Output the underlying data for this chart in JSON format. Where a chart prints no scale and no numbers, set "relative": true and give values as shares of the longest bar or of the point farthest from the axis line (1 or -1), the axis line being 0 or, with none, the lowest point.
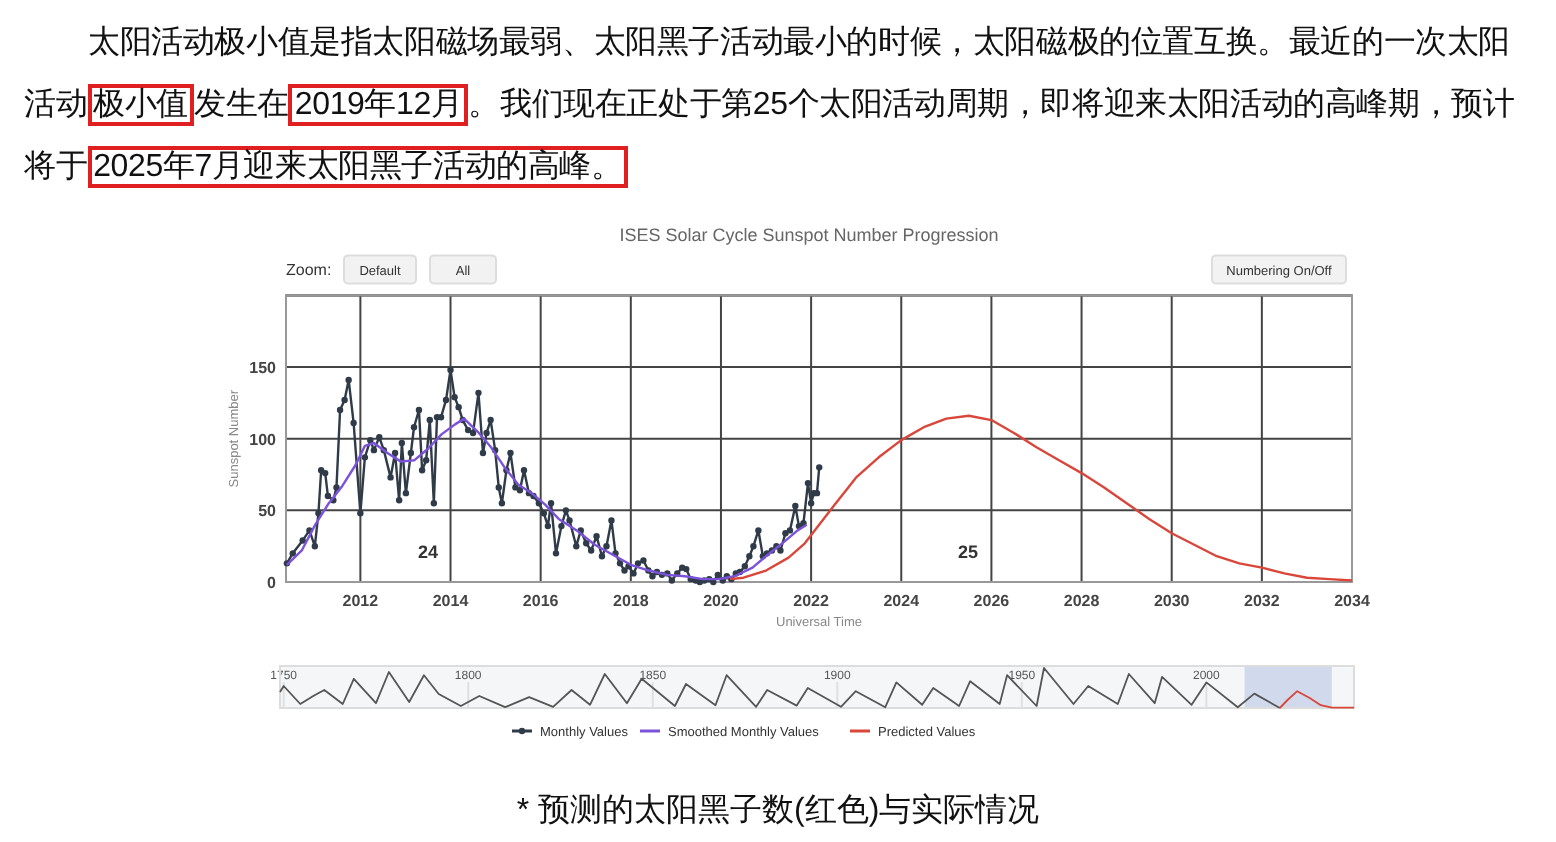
{
  "chart_data": [
    {
      "type": "line",
      "title": "ISES Solar Cycle Sunspot Number Progression",
      "xlabel": "Universal Time",
      "ylabel": "Sunspot Number",
      "annotations": [
        "太阳活动极小值是指太阳磁场最弱、太阳黑子活动最小的时候，太阳磁极的位置互换。最近的一次太阳活动",
        "极小值",
        "发生在",
        "2019年12月",
        "。我们现在正处于第25个太阳活动周期，即将迎来太阳活动的高峰期，预计将于",
        "2025年7月迎来太阳黑子活动的高峰。",
        "* 预测的太阳黑子数(红色)与实际情况",
        "Zoom:",
        "Default",
        "All",
        "Numbering On/Off",
        "24",
        "25"
      ],
      "series": [
        {
          "name": "Monthly Values",
          "color": "#2f3b48",
          "marker": "circle",
          "x": [
            2010.37,
            2010.5,
            2010.72,
            2010.87,
            2010.99,
            2011.07,
            2011.13,
            2011.22,
            2011.28,
            2011.4,
            2011.47,
            2011.55,
            2011.65,
            2011.74,
            2011.85,
            2012.0,
            2012.1,
            2012.22,
            2012.3,
            2012.42,
            2012.52,
            2012.67,
            2012.77,
            2012.86,
            2012.92,
            2013.01,
            2013.12,
            2013.19,
            2013.3,
            2013.37,
            2013.46,
            2013.54,
            2013.63,
            2013.7,
            2013.79,
            2013.9,
            2014.0,
            2014.09,
            2014.18,
            2014.27,
            2014.39,
            2014.5,
            2014.62,
            2014.72,
            2014.8,
            2014.89,
            2014.99,
            2015.07,
            2015.14,
            2015.24,
            2015.33,
            2015.44,
            2015.54,
            2015.63,
            2015.74,
            2015.84,
            2015.96,
            2016.07,
            2016.16,
            2016.23,
            2016.34,
            2016.46,
            2016.56,
            2016.64,
            2016.79,
            2016.89,
            2017.01,
            2017.12,
            2017.24,
            2017.36,
            2017.46,
            2017.57,
            2017.66,
            2017.76,
            2017.86,
            2017.95,
            2018.06,
            2018.16,
            2018.28,
            2018.39,
            2018.48,
            2018.58,
            2018.69,
            2018.81,
            2018.91,
            2019.03,
            2019.14,
            2019.23,
            2019.33,
            2019.44,
            2019.53,
            2019.63,
            2019.74,
            2019.83,
            2019.93,
            2020.04,
            2020.13,
            2020.23,
            2020.33,
            2020.42,
            2020.53,
            2020.63,
            2020.72,
            2020.83,
            2020.93,
            2021.02,
            2021.13,
            2021.23,
            2021.32,
            2021.43,
            2021.53,
            2021.65,
            2021.73,
            2021.83,
            2021.93,
            2022.0,
            2022.06,
            2022.13,
            2022.18
          ],
          "values": [
            13,
            20,
            29,
            36,
            25,
            48,
            78,
            76,
            60,
            57,
            66,
            120,
            127,
            141,
            111,
            48,
            87,
            99,
            92,
            101,
            92,
            73,
            90,
            57,
            97,
            62,
            90,
            108,
            120,
            78,
            85,
            113,
            55,
            115,
            115,
            127,
            148,
            129,
            122,
            113,
            106,
            104,
            132,
            90,
            104,
            113,
            92,
            66,
            55,
            78,
            90,
            66,
            64,
            78,
            62,
            60,
            55,
            48,
            39,
            55,
            20,
            39,
            50,
            43,
            25,
            36,
            27,
            22,
            32,
            18,
            25,
            43,
            20,
            13,
            8,
            11,
            6,
            13,
            15,
            8,
            4,
            7,
            5,
            6,
            1,
            6,
            10,
            9,
            2,
            1,
            0,
            1,
            2,
            0,
            5,
            1,
            4,
            2,
            6,
            7,
            11,
            18,
            25,
            36,
            18,
            20,
            22,
            25,
            22,
            34,
            36,
            53,
            39,
            41,
            69,
            55,
            62,
            62,
            80
          ]
        },
        {
          "name": "Smoothed Monthly Values",
          "color": "#7b52d9",
          "x": [
            2010.37,
            2010.7,
            2011.0,
            2011.3,
            2011.6,
            2011.9,
            2012.1,
            2012.3,
            2012.6,
            2012.9,
            2013.2,
            2013.5,
            2013.8,
            2014.1,
            2014.3,
            2014.6,
            2014.9,
            2015.2,
            2015.5,
            2015.8,
            2016.1,
            2016.4,
            2016.8,
            2017.2,
            2017.6,
            2018.0,
            2018.4,
            2018.8,
            2019.2,
            2019.6,
            2019.95,
            2020.3,
            2020.7,
            2021.0,
            2021.4,
            2021.7,
            2021.9
          ],
          "values": [
            12,
            22,
            40,
            55,
            67,
            82,
            95,
            97,
            90,
            84,
            85,
            93,
            103,
            110,
            114,
            105,
            94,
            80,
            68,
            62,
            54,
            44,
            36,
            26,
            19,
            12,
            8,
            5,
            4,
            2,
            2,
            4,
            10,
            18,
            28,
            36,
            40
          ]
        },
        {
          "name": "Predicted Values",
          "color": "#d9463a",
          "x": [
            2020.2,
            2020.5,
            2021.0,
            2021.5,
            2021.86,
            2022.5,
            2023.0,
            2023.5,
            2024.0,
            2024.5,
            2025.0,
            2025.5,
            2026.0,
            2026.5,
            2027.0,
            2027.5,
            2028.0,
            2028.5,
            2029.0,
            2029.5,
            2030.0,
            2030.5,
            2031.0,
            2031.5,
            2032.0,
            2032.5,
            2033.0,
            2033.5,
            2034.0
          ],
          "values": [
            2,
            3,
            8,
            17,
            27,
            53,
            73,
            87,
            99,
            108,
            114,
            116,
            113,
            104,
            94,
            85,
            76,
            66,
            55,
            44,
            34,
            26,
            18,
            13,
            10,
            6,
            3,
            2,
            1
          ]
        }
      ],
      "xlim": [
        2010.35,
        2034
      ],
      "ylim": [
        0,
        200
      ],
      "xticks": [
        2012,
        2014,
        2016,
        2018,
        2020,
        2022,
        2024,
        2026,
        2028,
        2030,
        2032,
        2034
      ],
      "yticks": [
        0,
        50,
        100,
        150,
        {
          "value": 200,
          "label": null
        }
      ],
      "grid": true,
      "legend": "bottom"
    },
    {
      "type": "line",
      "relative": true,
      "grid": "x",
      "tick_labels": "x",
      "xlim": [
        1749,
        2040
      ],
      "xticks": [
        1750,
        1800,
        1850,
        1900,
        1950,
        2000
      ],
      "bands": [
        {
          "axis": "x",
          "from": 2010.35,
          "to": 2034,
          "color": "#c8d2e8"
        }
      ],
      "series": [
        {
          "color": "#555555",
          "x": [
            1749,
            1750,
            1754.5,
            1758,
            1761,
            1766,
            1769,
            1775,
            1778.5,
            1784,
            1788,
            1792,
            1798,
            1803,
            1810,
            1816.5,
            1823,
            1828,
            1833,
            1837,
            1843,
            1847,
            1856,
            1859,
            1867,
            1870,
            1878,
            1881,
            1889,
            1892,
            1901,
            1905,
            1913,
            1916,
            1923,
            1926,
            1933,
            1936,
            1944,
            1946,
            1954,
            1956,
            1964,
            1968,
            1976,
            1979,
            1986,
            1988,
            1996,
            2000,
            2008.5,
            2013,
            2019.9
          ],
          "values": [
            0.4,
            0.55,
            0.1,
            0.3,
            0.45,
            0.1,
            0.73,
            0.12,
            0.9,
            0.15,
            0.82,
            0.35,
            0.05,
            0.3,
            0.02,
            0.27,
            0.03,
            0.45,
            0.08,
            0.85,
            0.12,
            0.73,
            0.05,
            0.6,
            0.07,
            0.82,
            0.03,
            0.45,
            0.06,
            0.5,
            0.03,
            0.42,
            0.02,
            0.64,
            0.08,
            0.5,
            0.05,
            0.67,
            0.1,
            0.82,
            0.05,
            1.0,
            0.1,
            0.55,
            0.1,
            0.85,
            0.12,
            0.78,
            0.08,
            0.64,
            0.02,
            0.36,
            0.0
          ]
        },
        {
          "color": "#d9463a",
          "x": [
            2019.9,
            2022,
            2024.6,
            2028,
            2031,
            2034,
            2040
          ],
          "values": [
            0.0,
            0.2,
            0.42,
            0.25,
            0.07,
            0.01,
            0.01
          ]
        }
      ]
    }
  ]
}
